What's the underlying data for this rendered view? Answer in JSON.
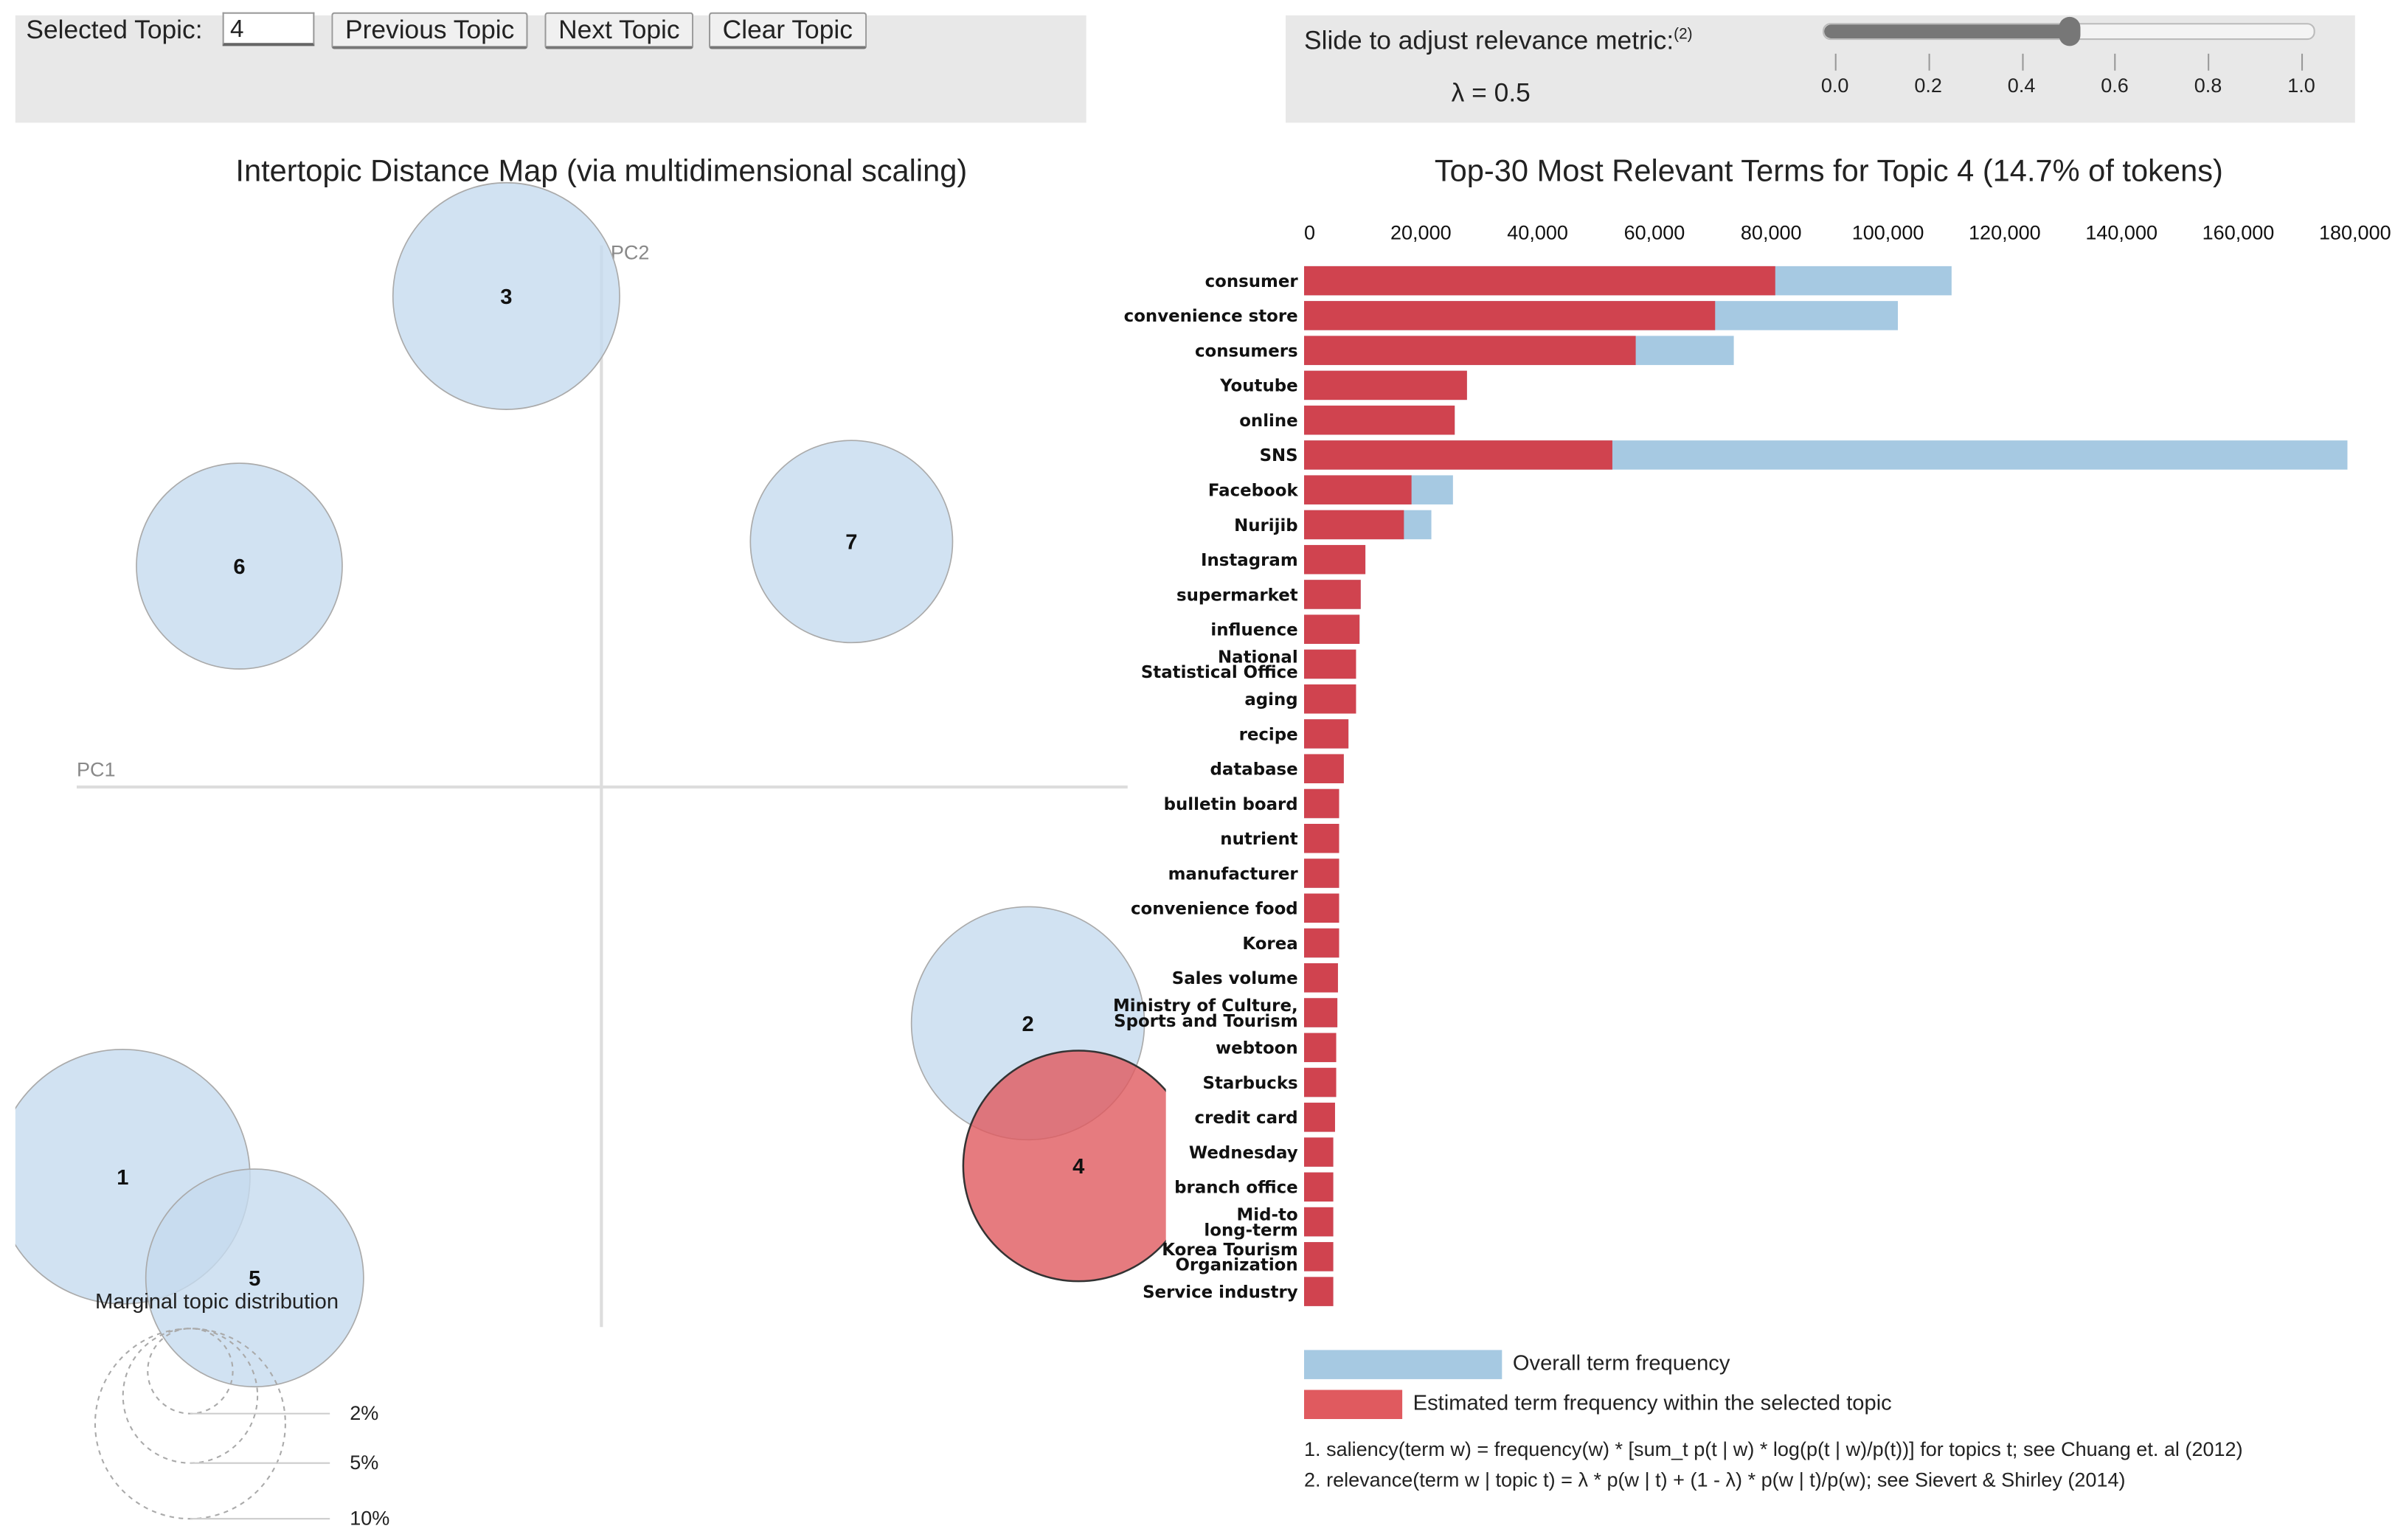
{
  "controls": {
    "selected_topic_label": "Selected Topic:",
    "selected_topic_value": "4",
    "previous_label": "Previous Topic",
    "next_label": "Next Topic",
    "clear_label": "Clear Topic"
  },
  "relevance": {
    "label": "Slide to adjust relevance metric:",
    "footnote_ref": "(2)",
    "lambda_text": "λ = 0.5",
    "lambda": 0.5,
    "ticks": [
      "0.0",
      "0.2",
      "0.4",
      "0.6",
      "0.8",
      "1.0"
    ]
  },
  "colors": {
    "overall": "#a6c9e2",
    "topic": "#d0434f",
    "circle": "#c6dbef",
    "selected_circle": "#e05a5f"
  },
  "chart_data": [
    {
      "type": "scatter",
      "title": "Intertopic Distance Map (via multidimensional scaling)",
      "xlabel": "PC1",
      "ylabel": "PC2",
      "selected_topic": 4,
      "topics": [
        {
          "id": "1",
          "pc1": -1.56,
          "pc2": -1.27,
          "marginal_pct": 17.9
        },
        {
          "id": "2",
          "pc1": 1.39,
          "pc2": -0.77,
          "marginal_pct": 15.0
        },
        {
          "id": "3",
          "pc1": -0.31,
          "pc2": 1.6,
          "marginal_pct": 14.2
        },
        {
          "id": "4",
          "pc1": 1.555,
          "pc2": -1.235,
          "marginal_pct": 14.7
        },
        {
          "id": "5",
          "pc1": -1.13,
          "pc2": -1.6,
          "marginal_pct": 13.1
        },
        {
          "id": "6",
          "pc1": -1.18,
          "pc2": 0.72,
          "marginal_pct": 11.7
        },
        {
          "id": "7",
          "pc1": 0.815,
          "pc2": 0.8,
          "marginal_pct": 11.3
        }
      ],
      "marginal_legend": {
        "title": "Marginal topic distribution",
        "levels": [
          {
            "pct": 2,
            "label": "2%"
          },
          {
            "pct": 5,
            "label": "5%"
          },
          {
            "pct": 10,
            "label": "10%"
          }
        ]
      }
    },
    {
      "type": "bar",
      "title": "Top-30 Most Relevant Terms for Topic 4 (14.7% of tokens)",
      "xlim": [
        0,
        180000
      ],
      "xticks": [
        "0",
        "20,000",
        "40,000",
        "60,000",
        "80,000",
        "100,000",
        "120,000",
        "140,000",
        "160,000",
        "180,000"
      ],
      "legend": {
        "overall": "Overall term frequency",
        "topic": "Estimated term frequency within the selected topic"
      },
      "terms": [
        {
          "term": [
            "consumer"
          ],
          "overall": 110900,
          "topic": 80700
        },
        {
          "term": [
            "convenience store"
          ],
          "overall": 101700,
          "topic": 70400
        },
        {
          "term": [
            "consumers"
          ],
          "overall": 73600,
          "topic": 56800
        },
        {
          "term": [
            "Youtube"
          ],
          "overall": 27900,
          "topic": 27900
        },
        {
          "term": [
            "online"
          ],
          "overall": 25800,
          "topic": 25800
        },
        {
          "term": [
            "SNS"
          ],
          "overall": 178700,
          "topic": 52800
        },
        {
          "term": [
            "Facebook"
          ],
          "overall": 25500,
          "topic": 18400
        },
        {
          "term": [
            "Nurijib"
          ],
          "overall": 21800,
          "topic": 17100
        },
        {
          "term": [
            "Instagram"
          ],
          "overall": 10500,
          "topic": 10500
        },
        {
          "term": [
            "supermarket"
          ],
          "overall": 9700,
          "topic": 9700
        },
        {
          "term": [
            "influence"
          ],
          "overall": 9500,
          "topic": 9500
        },
        {
          "term": [
            "National",
            "Statistical Office"
          ],
          "overall": 8900,
          "topic": 8900
        },
        {
          "term": [
            "aging"
          ],
          "overall": 8900,
          "topic": 8900
        },
        {
          "term": [
            "recipe"
          ],
          "overall": 7600,
          "topic": 7600
        },
        {
          "term": [
            "database"
          ],
          "overall": 6800,
          "topic": 6800
        },
        {
          "term": [
            "bulletin board"
          ],
          "overall": 6000,
          "topic": 6000
        },
        {
          "term": [
            "nutrient"
          ],
          "overall": 6000,
          "topic": 6000
        },
        {
          "term": [
            "manufacturer"
          ],
          "overall": 6000,
          "topic": 6000
        },
        {
          "term": [
            "convenience food"
          ],
          "overall": 6000,
          "topic": 6000
        },
        {
          "term": [
            "Korea"
          ],
          "overall": 6000,
          "topic": 6000
        },
        {
          "term": [
            "Sales volume"
          ],
          "overall": 5800,
          "topic": 5800
        },
        {
          "term": [
            "Ministry of Culture,",
            "Sports and Tourism"
          ],
          "overall": 5700,
          "topic": 5700
        },
        {
          "term": [
            "webtoon"
          ],
          "overall": 5500,
          "topic": 5500
        },
        {
          "term": [
            "Starbucks"
          ],
          "overall": 5500,
          "topic": 5500
        },
        {
          "term": [
            "credit card"
          ],
          "overall": 5300,
          "topic": 5300
        },
        {
          "term": [
            "Wednesday"
          ],
          "overall": 5000,
          "topic": 5000
        },
        {
          "term": [
            "branch office"
          ],
          "overall": 5000,
          "topic": 5000
        },
        {
          "term": [
            "Mid-to",
            "long-term"
          ],
          "overall": 5000,
          "topic": 5000
        },
        {
          "term": [
            "Korea Tourism",
            "Organization"
          ],
          "overall": 5000,
          "topic": 5000
        },
        {
          "term": [
            "Service industry"
          ],
          "overall": 5000,
          "topic": 5000
        }
      ]
    }
  ],
  "footnotes": [
    "1. saliency(term w) = frequency(w) * [sum_t p(t | w) * log(p(t | w)/p(t))] for topics t; see Chuang et. al (2012)",
    "2. relevance(term w | topic t) = λ * p(w | t) + (1 - λ) * p(w | t)/p(w); see Sievert & Shirley (2014)"
  ]
}
